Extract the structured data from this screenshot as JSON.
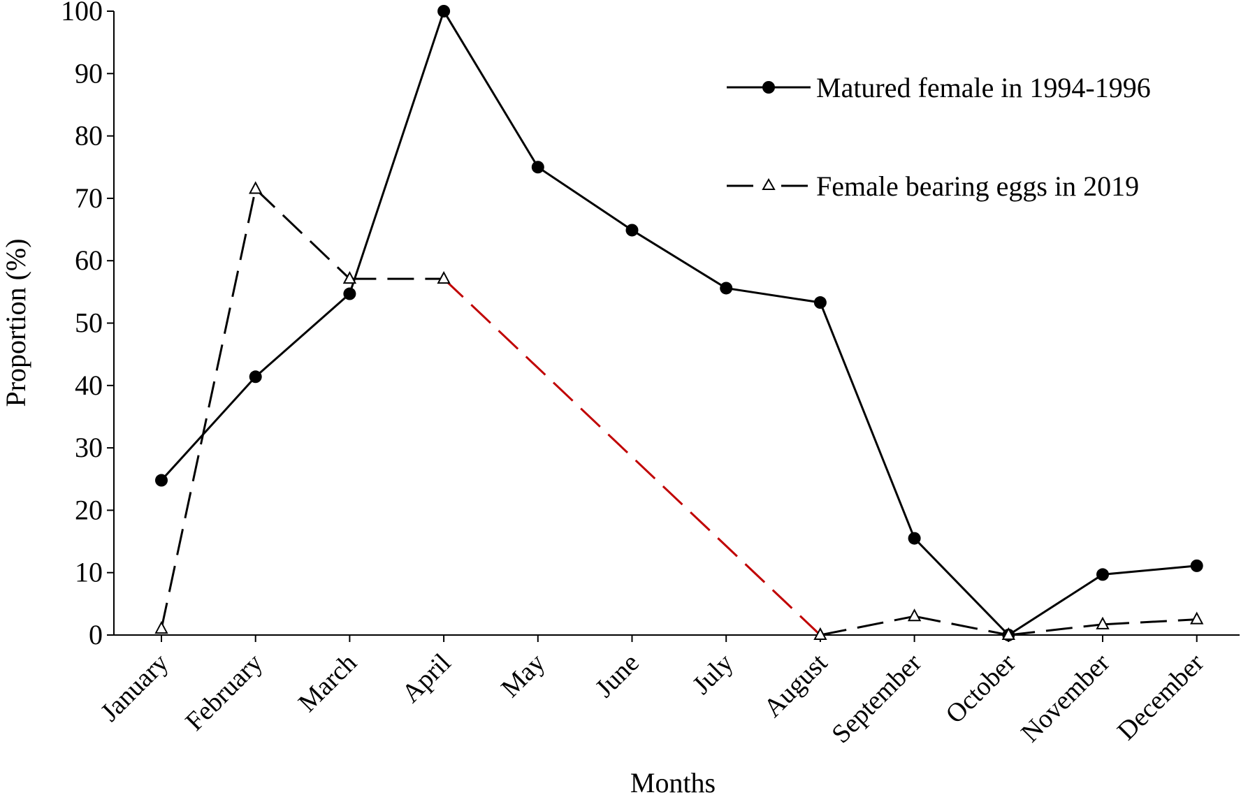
{
  "chart_data": {
    "type": "line",
    "title": "",
    "xlabel": "Months",
    "ylabel": "Proportion (%)",
    "ylim": [
      0,
      100
    ],
    "yticks": [
      0,
      10,
      20,
      30,
      40,
      50,
      60,
      70,
      80,
      90,
      100
    ],
    "categories": [
      "January",
      "February",
      "March",
      "April",
      "May",
      "June",
      "July",
      "August",
      "September",
      "October",
      "November",
      "December"
    ],
    "legend_position": "top-right",
    "series": [
      {
        "name": "Matured female in 1994-1996",
        "marker": "filled-circle",
        "line": "solid",
        "color": "#000000",
        "values": [
          24.8,
          41.4,
          54.7,
          100,
          75.0,
          64.9,
          55.6,
          53.3,
          15.5,
          0,
          9.7,
          11.1
        ]
      },
      {
        "name": "Female bearing eggs in 2019",
        "marker": "open-triangle",
        "line": "dashed",
        "color": "#000000",
        "highlight_segment": {
          "from": "April",
          "to": "August",
          "color": "#c00000"
        },
        "values": [
          1.0,
          71.5,
          57.1,
          57.1,
          null,
          null,
          null,
          0,
          3.0,
          0,
          1.7,
          2.5
        ]
      }
    ]
  }
}
